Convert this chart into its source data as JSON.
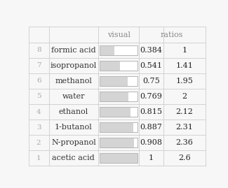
{
  "rows": [
    {
      "rank": 8,
      "name": "formic acid",
      "visual": 0.384,
      "ratio": "1"
    },
    {
      "rank": 7,
      "name": "isopropanol",
      "visual": 0.541,
      "ratio": "1.41"
    },
    {
      "rank": 6,
      "name": "methanol",
      "visual": 0.75,
      "ratio": "1.95"
    },
    {
      "rank": 5,
      "name": "water",
      "visual": 0.769,
      "ratio": "2"
    },
    {
      "rank": 4,
      "name": "ethanol",
      "visual": 0.815,
      "ratio": "2.12"
    },
    {
      "rank": 3,
      "name": "1-butanol",
      "visual": 0.887,
      "ratio": "2.31"
    },
    {
      "rank": 2,
      "name": "N-propanol",
      "visual": 0.908,
      "ratio": "2.36"
    },
    {
      "rank": 1,
      "name": "acetic acid",
      "visual": 1.0,
      "ratio": "2.6"
    }
  ],
  "col_headers": [
    "visual",
    "ratios"
  ],
  "bar_fill_color": "#d4d4d4",
  "bar_bg_color": "#ffffff",
  "bar_edge_color": "#b0b0b0",
  "header_color": "#888888",
  "rank_color": "#aaaaaa",
  "name_color": "#333333",
  "value_color": "#222222",
  "bg_color": "#f7f7f7",
  "grid_color": "#cccccc",
  "font_name": "DejaVu Serif",
  "header_fontsize": 8,
  "cell_fontsize": 8,
  "rank_fontsize": 7.5
}
